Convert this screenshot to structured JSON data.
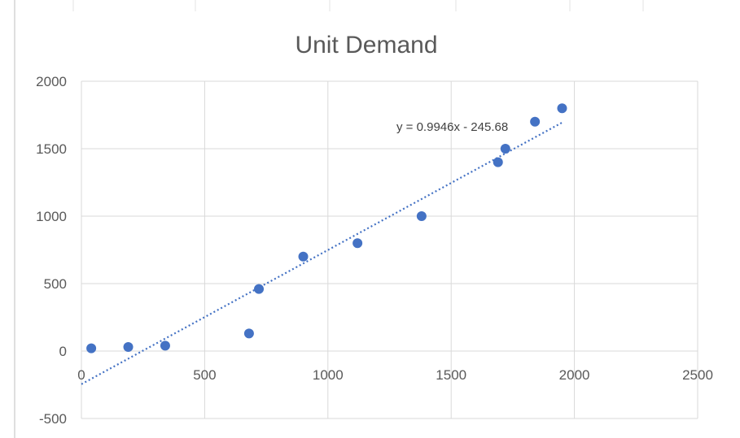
{
  "chart_data": {
    "type": "scatter",
    "title": "Unit Demand",
    "xlabel": "",
    "ylabel": "",
    "xlim": [
      0,
      2500
    ],
    "ylim": [
      -500,
      2000
    ],
    "x_ticks": [
      0,
      500,
      1000,
      1500,
      2000,
      2500
    ],
    "y_ticks": [
      -500,
      0,
      500,
      1000,
      1500,
      2000
    ],
    "x_tick_labels": [
      "0",
      "500",
      "1000",
      "1500",
      "2000",
      "2500"
    ],
    "y_tick_labels": [
      "-500",
      "0",
      "500",
      "1000",
      "1500",
      "2000"
    ],
    "grid": true,
    "legend": "none",
    "points": [
      {
        "x": 40,
        "y": 20
      },
      {
        "x": 190,
        "y": 30
      },
      {
        "x": 340,
        "y": 40
      },
      {
        "x": 680,
        "y": 130
      },
      {
        "x": 720,
        "y": 460
      },
      {
        "x": 900,
        "y": 700
      },
      {
        "x": 1120,
        "y": 800
      },
      {
        "x": 1380,
        "y": 1000
      },
      {
        "x": 1690,
        "y": 1400
      },
      {
        "x": 1720,
        "y": 1500
      },
      {
        "x": 1840,
        "y": 1700
      },
      {
        "x": 1950,
        "y": 1800
      }
    ],
    "trendline": {
      "type": "linear",
      "slope": 0.9946,
      "intercept": -245.68,
      "x_range": [
        0,
        1950
      ],
      "equation_label": "y = 0.9946x - 245.68"
    },
    "colors": {
      "marker": "#4472C4",
      "trendline": "#4472C4",
      "grid": "#D9D9D9",
      "text": "#595959"
    }
  }
}
